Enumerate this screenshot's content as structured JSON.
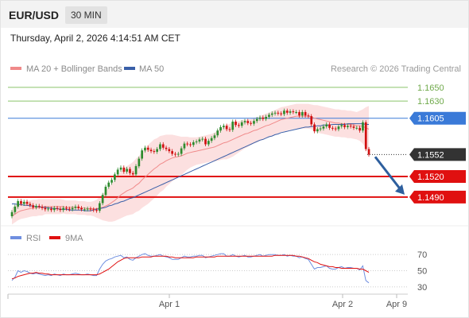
{
  "header": {
    "symbol": "EUR/USD",
    "timeframe": "30 MIN",
    "datetime": "Thursday, April 2, 2026 4:14:51 AM CET"
  },
  "legend": {
    "ma20_label": "MA 20 + Bollinger Bands",
    "ma50_label": "MA 50",
    "source": "Research © 2026 Trading Central",
    "rsi_label": "RSI",
    "rsi_ma_label": "9MA"
  },
  "colors": {
    "up": "#2e8b2e",
    "down": "#d01010",
    "ma20": "#f08a8a",
    "bollinger": "#fbd5d5",
    "ma50": "#3a5fa8",
    "resistance": "#8ac46a",
    "pivot": "#3a7ad8",
    "support": "#e01010",
    "current": "#333333",
    "arrow": "#2e5f9e",
    "rsi": "#6f8fe0",
    "rsi_ma": "#e01010"
  },
  "chart_data": [
    {
      "type": "candlestick",
      "ylim": [
        1.1455,
        1.1665
      ],
      "x_labels": [
        "Apr 1",
        "Apr 2",
        "Apr 9"
      ],
      "levels": [
        {
          "label": "1.1650",
          "value": 1.165,
          "kind": "resistance"
        },
        {
          "label": "1.1630",
          "value": 1.163,
          "kind": "resistance"
        },
        {
          "label": "1.1605",
          "value": 1.1605,
          "kind": "pivot"
        },
        {
          "label": "1.1552",
          "value": 1.1552,
          "kind": "current"
        },
        {
          "label": "1.1520",
          "value": 1.152,
          "kind": "support"
        },
        {
          "label": "1.1490",
          "value": 1.149,
          "kind": "support"
        }
      ],
      "forecast_arrow": {
        "from": 1.1551,
        "to": 1.149
      },
      "closes": [
        1.1468,
        1.1476,
        1.1484,
        1.148,
        1.1483,
        1.148,
        1.1478,
        1.1475,
        1.1477,
        1.1476,
        1.1474,
        1.1472,
        1.1473,
        1.1471,
        1.1474,
        1.1473,
        1.1471,
        1.1474,
        1.1473,
        1.1472,
        1.1474,
        1.1476,
        1.1474,
        1.1472,
        1.1472,
        1.1473,
        1.1472,
        1.1471,
        1.147,
        1.1481,
        1.1493,
        1.1505,
        1.1511,
        1.1515,
        1.1523,
        1.153,
        1.1533,
        1.1527,
        1.1531,
        1.1525,
        1.1523,
        1.1535,
        1.1546,
        1.1558,
        1.1562,
        1.1559,
        1.1557,
        1.1556,
        1.156,
        1.1567,
        1.1562,
        1.156,
        1.1557,
        1.1553,
        1.1552,
        1.1553,
        1.1561,
        1.1568,
        1.1567,
        1.1566,
        1.157,
        1.1571,
        1.1574,
        1.1575,
        1.1567,
        1.1572,
        1.1576,
        1.158,
        1.1587,
        1.1592,
        1.1594,
        1.1589,
        1.1588,
        1.16,
        1.1595,
        1.1594,
        1.1599,
        1.1601,
        1.1598,
        1.1597,
        1.1601,
        1.1604,
        1.1606,
        1.1604,
        1.1607,
        1.161,
        1.1612,
        1.1613,
        1.1612,
        1.1611,
        1.1616,
        1.1613,
        1.1615,
        1.1614,
        1.1614,
        1.1609,
        1.1614,
        1.1609,
        1.1608,
        1.1596,
        1.1586,
        1.1589,
        1.159,
        1.1593,
        1.1596,
        1.1591,
        1.159,
        1.1589,
        1.1593,
        1.1595,
        1.1592,
        1.1594,
        1.1593,
        1.1591,
        1.1591,
        1.1587,
        1.1599,
        1.156,
        1.1552
      ],
      "ma20": [
        1.1462,
        1.1465,
        1.1468,
        1.147,
        1.1471,
        1.1472,
        1.1473,
        1.1474,
        1.1474,
        1.1475,
        1.1475,
        1.1476,
        1.1476,
        1.1476,
        1.1476,
        1.1476,
        1.1476,
        1.1476,
        1.1475,
        1.1475,
        1.1475,
        1.1475,
        1.1474,
        1.1474,
        1.1474,
        1.1473,
        1.1473,
        1.1473,
        1.1473,
        1.1474,
        1.1475,
        1.1477,
        1.1479,
        1.1482,
        1.1485,
        1.1489,
        1.1493,
        1.1496,
        1.1499,
        1.1501,
        1.1503,
        1.1507,
        1.151,
        1.1515,
        1.1519,
        1.1523,
        1.1527,
        1.1531,
        1.1534,
        1.1538,
        1.154,
        1.1543,
        1.1545,
        1.1547,
        1.1548,
        1.1549,
        1.155,
        1.1552,
        1.1554,
        1.1555,
        1.1556,
        1.1557,
        1.1558,
        1.1559,
        1.156,
        1.1561,
        1.1562,
        1.1563,
        1.1565,
        1.1567,
        1.1569,
        1.157,
        1.1572,
        1.1574,
        1.1576,
        1.1578,
        1.158,
        1.1582,
        1.1583,
        1.1585,
        1.1587,
        1.1588,
        1.159,
        1.1592,
        1.1594,
        1.1595,
        1.1597,
        1.1599,
        1.1601,
        1.1603,
        1.1604,
        1.1605,
        1.1606,
        1.1607,
        1.1608,
        1.1608,
        1.1608,
        1.1608,
        1.1608,
        1.1607,
        1.1605,
        1.1604,
        1.1603,
        1.1602,
        1.1601,
        1.16,
        1.1599,
        1.1598,
        1.1598,
        1.1597,
        1.1597,
        1.1596,
        1.1596,
        1.1595,
        1.1594,
        1.1594,
        1.1593,
        1.1591,
        1.1589
      ],
      "ma50": [
        1.148,
        1.148,
        1.1479,
        1.1479,
        1.1478,
        1.1478,
        1.1477,
        1.1477,
        1.1476,
        1.1476,
        1.1475,
        1.1475,
        1.1474,
        1.1474,
        1.1473,
        1.1473,
        1.1472,
        1.1472,
        1.1472,
        1.1471,
        1.1471,
        1.1471,
        1.1471,
        1.1471,
        1.147,
        1.147,
        1.147,
        1.1471,
        1.1472,
        1.1473,
        1.1474,
        1.1475,
        1.1477,
        1.1478,
        1.148,
        1.1481,
        1.1483,
        1.1484,
        1.1486,
        1.1488,
        1.1489,
        1.1491,
        1.1493,
        1.1495,
        1.1497,
        1.1499,
        1.1501,
        1.1503,
        1.1505,
        1.1507,
        1.1509,
        1.1511,
        1.1513,
        1.1515,
        1.1517,
        1.1519,
        1.1521,
        1.1523,
        1.1525,
        1.1527,
        1.1529,
        1.1531,
        1.1533,
        1.1535,
        1.1537,
        1.1539,
        1.1541,
        1.1543,
        1.1545,
        1.1547,
        1.1549,
        1.1551,
        1.1553,
        1.1555,
        1.1557,
        1.1559,
        1.1561,
        1.1563,
        1.1565,
        1.1567,
        1.1569,
        1.1571,
        1.1573,
        1.1574,
        1.1576,
        1.1578,
        1.1579,
        1.1581,
        1.1582,
        1.1584,
        1.1585,
        1.1586,
        1.1587,
        1.1588,
        1.1589,
        1.159,
        1.1591,
        1.1592,
        1.1592,
        1.1593,
        1.1593,
        1.1594,
        1.1594,
        1.1595,
        1.1595,
        1.1595,
        1.1596,
        1.1596,
        1.1596,
        1.1596,
        1.1596,
        1.1597,
        1.1597,
        1.1597,
        1.1597,
        1.1597,
        1.1597,
        1.1596,
        1.1596
      ],
      "bb_width": [
        0.0012,
        0.0012,
        0.0012,
        0.0012,
        0.0012,
        0.0012,
        0.0012,
        0.0012,
        0.0012,
        0.0012,
        0.0012,
        0.0011,
        0.0011,
        0.0011,
        0.0011,
        0.0011,
        0.0011,
        0.001,
        0.001,
        0.001,
        0.001,
        0.001,
        0.001,
        0.001,
        0.001,
        0.001,
        0.001,
        0.0011,
        0.0013,
        0.0016,
        0.0019,
        0.0022,
        0.0025,
        0.0028,
        0.003,
        0.0032,
        0.0034,
        0.0035,
        0.0036,
        0.0037,
        0.0038,
        0.0039,
        0.004,
        0.0041,
        0.0042,
        0.0043,
        0.0043,
        0.0043,
        0.0042,
        0.0041,
        0.004,
        0.0038,
        0.0036,
        0.0034,
        0.0032,
        0.003,
        0.0028,
        0.0026,
        0.0024,
        0.0022,
        0.0021,
        0.002,
        0.002,
        0.002,
        0.002,
        0.002,
        0.002,
        0.0021,
        0.0022,
        0.0023,
        0.0024,
        0.0025,
        0.0025,
        0.0025,
        0.0024,
        0.0023,
        0.0022,
        0.0021,
        0.002,
        0.0019,
        0.0019,
        0.0018,
        0.0018,
        0.0018,
        0.0018,
        0.0018,
        0.0018,
        0.0018,
        0.0018,
        0.0018,
        0.0018,
        0.0018,
        0.0018,
        0.0018,
        0.0018,
        0.0018,
        0.0018,
        0.0018,
        0.0018,
        0.0018,
        0.0019,
        0.002,
        0.002,
        0.002,
        0.002,
        0.002,
        0.002,
        0.002,
        0.002,
        0.002,
        0.002,
        0.002,
        0.002,
        0.002,
        0.002,
        0.0022,
        0.0025,
        0.003,
        0.0034
      ]
    },
    {
      "type": "line",
      "name": "RSI",
      "ylim": [
        25,
        78
      ],
      "y_ticks": [
        "70",
        "50",
        "30"
      ],
      "series": [
        {
          "name": "RSI",
          "values": [
            38,
            42,
            50,
            48,
            50,
            49,
            47,
            46,
            47,
            46,
            45,
            44,
            45,
            44,
            46,
            45,
            44,
            46,
            45,
            45,
            46,
            47,
            46,
            45,
            45,
            46,
            45,
            44,
            44,
            52,
            58,
            62,
            64,
            65,
            67,
            68,
            69,
            66,
            67,
            64,
            63,
            66,
            68,
            70,
            71,
            69,
            68,
            68,
            69,
            70,
            68,
            67,
            66,
            64,
            64,
            64,
            66,
            68,
            67,
            67,
            68,
            68,
            69,
            69,
            66,
            67,
            68,
            69,
            70,
            71,
            71,
            68,
            68,
            70,
            68,
            67,
            68,
            69,
            67,
            67,
            68,
            69,
            70,
            68,
            69,
            70,
            70,
            70,
            69,
            69,
            70,
            68,
            69,
            68,
            68,
            66,
            67,
            65,
            64,
            58,
            52,
            54,
            54,
            55,
            56,
            53,
            52,
            52,
            54,
            55,
            53,
            54,
            54,
            53,
            53,
            51,
            56,
            38,
            35
          ]
        },
        {
          "name": "9MA",
          "values": [
            40,
            41,
            43,
            44,
            45,
            46,
            47,
            47,
            48,
            47,
            47,
            46,
            46,
            45,
            45,
            45,
            45,
            45,
            45,
            45,
            45,
            45,
            45,
            45,
            45,
            45,
            45,
            45,
            45,
            46,
            48,
            50,
            52,
            55,
            58,
            61,
            63,
            65,
            66,
            66,
            66,
            66,
            66,
            67,
            67,
            67,
            67,
            68,
            68,
            68,
            68,
            68,
            67,
            67,
            66,
            66,
            66,
            66,
            66,
            66,
            66,
            67,
            67,
            67,
            67,
            67,
            67,
            67,
            68,
            68,
            68,
            68,
            68,
            68,
            68,
            68,
            68,
            68,
            68,
            68,
            68,
            68,
            68,
            68,
            68,
            68,
            68,
            69,
            69,
            69,
            69,
            69,
            69,
            69,
            68,
            68,
            67,
            66,
            65,
            63,
            61,
            60,
            58,
            57,
            56,
            55,
            55,
            54,
            54,
            53,
            53,
            53,
            53,
            53,
            53,
            52,
            52,
            50,
            48
          ]
        }
      ]
    }
  ]
}
